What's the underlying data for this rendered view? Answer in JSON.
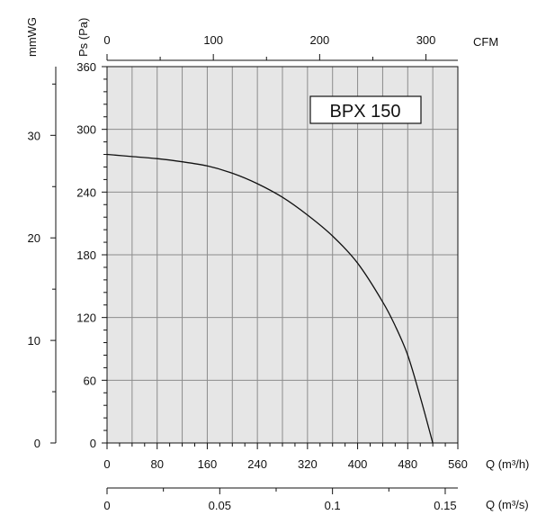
{
  "chart_data": {
    "type": "line",
    "title": "BPX 150",
    "xlabel": "Q (m³/h)",
    "ylabel": "Ps (Pa)",
    "xlim": [
      0,
      560
    ],
    "ylim": [
      0,
      360
    ],
    "x_ticks": [
      "0",
      "80",
      "160",
      "240",
      "320",
      "400",
      "480",
      "560"
    ],
    "y_ticks": [
      "0",
      "60",
      "120",
      "180",
      "240",
      "300",
      "360"
    ],
    "grid": true,
    "series": [
      {
        "x": [
          0,
          40,
          80,
          120,
          160,
          200,
          240,
          280,
          320,
          360,
          400,
          440,
          460,
          480,
          500,
          520
        ],
        "y": [
          276,
          274,
          272,
          269,
          265,
          258,
          248,
          235,
          218,
          198,
          172,
          135,
          112,
          84,
          44,
          0
        ]
      }
    ],
    "secondary_axes": {
      "cfm": {
        "label": "CFM",
        "ticks": [
          "0",
          "100",
          "200",
          "300"
        ],
        "range": [
          0,
          330
        ]
      },
      "mmwg": {
        "label": "mmWG",
        "ticks": [
          "0",
          "10",
          "20",
          "30"
        ],
        "range": [
          0,
          36.7
        ]
      },
      "m3s": {
        "label": "Q (m³/s)",
        "ticks": [
          "0",
          "0.05",
          "0.1",
          "0.15"
        ],
        "range": [
          0,
          0.1556
        ]
      }
    }
  }
}
